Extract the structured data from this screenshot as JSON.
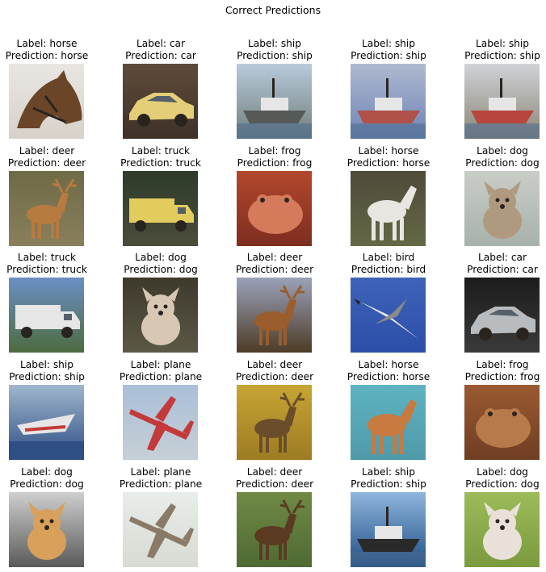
{
  "title": "Correct Predictions",
  "chart_data": {
    "type": "image_grid",
    "title": "Correct Predictions",
    "rows": 5,
    "cols": 5,
    "label_prefix": "Label: ",
    "prediction_prefix": "Prediction: ",
    "items": [
      {
        "label": "horse",
        "prediction": "horse",
        "icon": "horse-head-icon",
        "bg": [
          "#e9e6e2",
          "#d7d1c9"
        ],
        "fg": "#6b4527"
      },
      {
        "label": "car",
        "prediction": "car",
        "icon": "yellow-car-icon",
        "bg": [
          "#5f4b3a",
          "#3e3128"
        ],
        "fg": "#e4cf78"
      },
      {
        "label": "ship",
        "prediction": "ship",
        "icon": "boat-icon",
        "bg": [
          "#b9cadb",
          "#6f7f7c"
        ],
        "fg": "#555a57"
      },
      {
        "label": "ship",
        "prediction": "ship",
        "icon": "boat-icon",
        "bg": [
          "#aeb9cf",
          "#6e84b6"
        ],
        "fg": "#b0514a"
      },
      {
        "label": "ship",
        "prediction": "ship",
        "icon": "boat-icon",
        "bg": [
          "#cfd3d7",
          "#8b8576"
        ],
        "fg": "#b8463d"
      },
      {
        "label": "deer",
        "prediction": "deer",
        "icon": "deer-icon",
        "bg": [
          "#6d6b46",
          "#8a7f5c"
        ],
        "fg": "#b77a3f"
      },
      {
        "label": "truck",
        "prediction": "truck",
        "icon": "truck-icon",
        "bg": [
          "#2e3b2a",
          "#4a4d3a"
        ],
        "fg": "#e3cc5e"
      },
      {
        "label": "frog",
        "prediction": "frog",
        "icon": "frog-icon",
        "bg": [
          "#b3472d",
          "#7d2e1f"
        ],
        "fg": "#d57a5a"
      },
      {
        "label": "horse",
        "prediction": "horse",
        "icon": "horse-icon",
        "bg": [
          "#4e4a3a",
          "#646845"
        ],
        "fg": "#e8e6e1"
      },
      {
        "label": "dog",
        "prediction": "dog",
        "icon": "dog-icon",
        "bg": [
          "#c9cdc8",
          "#a8b1ab"
        ],
        "fg": "#b09a7f"
      },
      {
        "label": "truck",
        "prediction": "truck",
        "icon": "truck-icon",
        "bg": [
          "#6b8fc4",
          "#4d6b3e"
        ],
        "fg": "#e6e6e6"
      },
      {
        "label": "dog",
        "prediction": "dog",
        "icon": "dog-icon",
        "bg": [
          "#3d3a2c",
          "#5b5847"
        ],
        "fg": "#d8c8b3"
      },
      {
        "label": "deer",
        "prediction": "deer",
        "icon": "deer-icon",
        "bg": [
          "#9aa2ba",
          "#4d3c26"
        ],
        "fg": "#9a5d2b"
      },
      {
        "label": "bird",
        "prediction": "bird",
        "icon": "bird-icon",
        "bg": [
          "#3f63b8",
          "#2b4fa8"
        ],
        "fg": "#e3e3e3"
      },
      {
        "label": "car",
        "prediction": "car",
        "icon": "car-icon",
        "bg": [
          "#1c1c1c",
          "#3a3a3a"
        ],
        "fg": "#b9bcbf"
      },
      {
        "label": "ship",
        "prediction": "ship",
        "icon": "speedboat-icon",
        "bg": [
          "#9fb6cd",
          "#2e4e84"
        ],
        "fg": "#e6e6e6"
      },
      {
        "label": "plane",
        "prediction": "plane",
        "icon": "plane-icon",
        "bg": [
          "#a9bfd8",
          "#c6cfd6"
        ],
        "fg": "#c23a3a"
      },
      {
        "label": "deer",
        "prediction": "deer",
        "icon": "deer-icon",
        "bg": [
          "#c7a534",
          "#9d7b23"
        ],
        "fg": "#6a4e2b"
      },
      {
        "label": "horse",
        "prediction": "horse",
        "icon": "horse-icon",
        "bg": [
          "#5fb3c1",
          "#4f9aa9"
        ],
        "fg": "#c87a41"
      },
      {
        "label": "frog",
        "prediction": "frog",
        "icon": "frog-icon",
        "bg": [
          "#9b5a31",
          "#6e3e23"
        ],
        "fg": "#b87a4a"
      },
      {
        "label": "dog",
        "prediction": "dog",
        "icon": "dog-icon",
        "bg": [
          "#cfcfcf",
          "#5a5a5a"
        ],
        "fg": "#d8a05b"
      },
      {
        "label": "plane",
        "prediction": "plane",
        "icon": "plane-icon",
        "bg": [
          "#e9ede9",
          "#d7dbd3"
        ],
        "fg": "#8a7a68"
      },
      {
        "label": "deer",
        "prediction": "deer",
        "icon": "moose-icon",
        "bg": [
          "#6f8a45",
          "#4f6a33"
        ],
        "fg": "#5a3b22"
      },
      {
        "label": "ship",
        "prediction": "ship",
        "icon": "boat-icon",
        "bg": [
          "#8fb6dd",
          "#1f4f86"
        ],
        "fg": "#2a2a2a"
      },
      {
        "label": "dog",
        "prediction": "dog",
        "icon": "dog-icon",
        "bg": [
          "#9dbb5a",
          "#7a9a3e"
        ],
        "fg": "#e9e1d8"
      }
    ]
  }
}
